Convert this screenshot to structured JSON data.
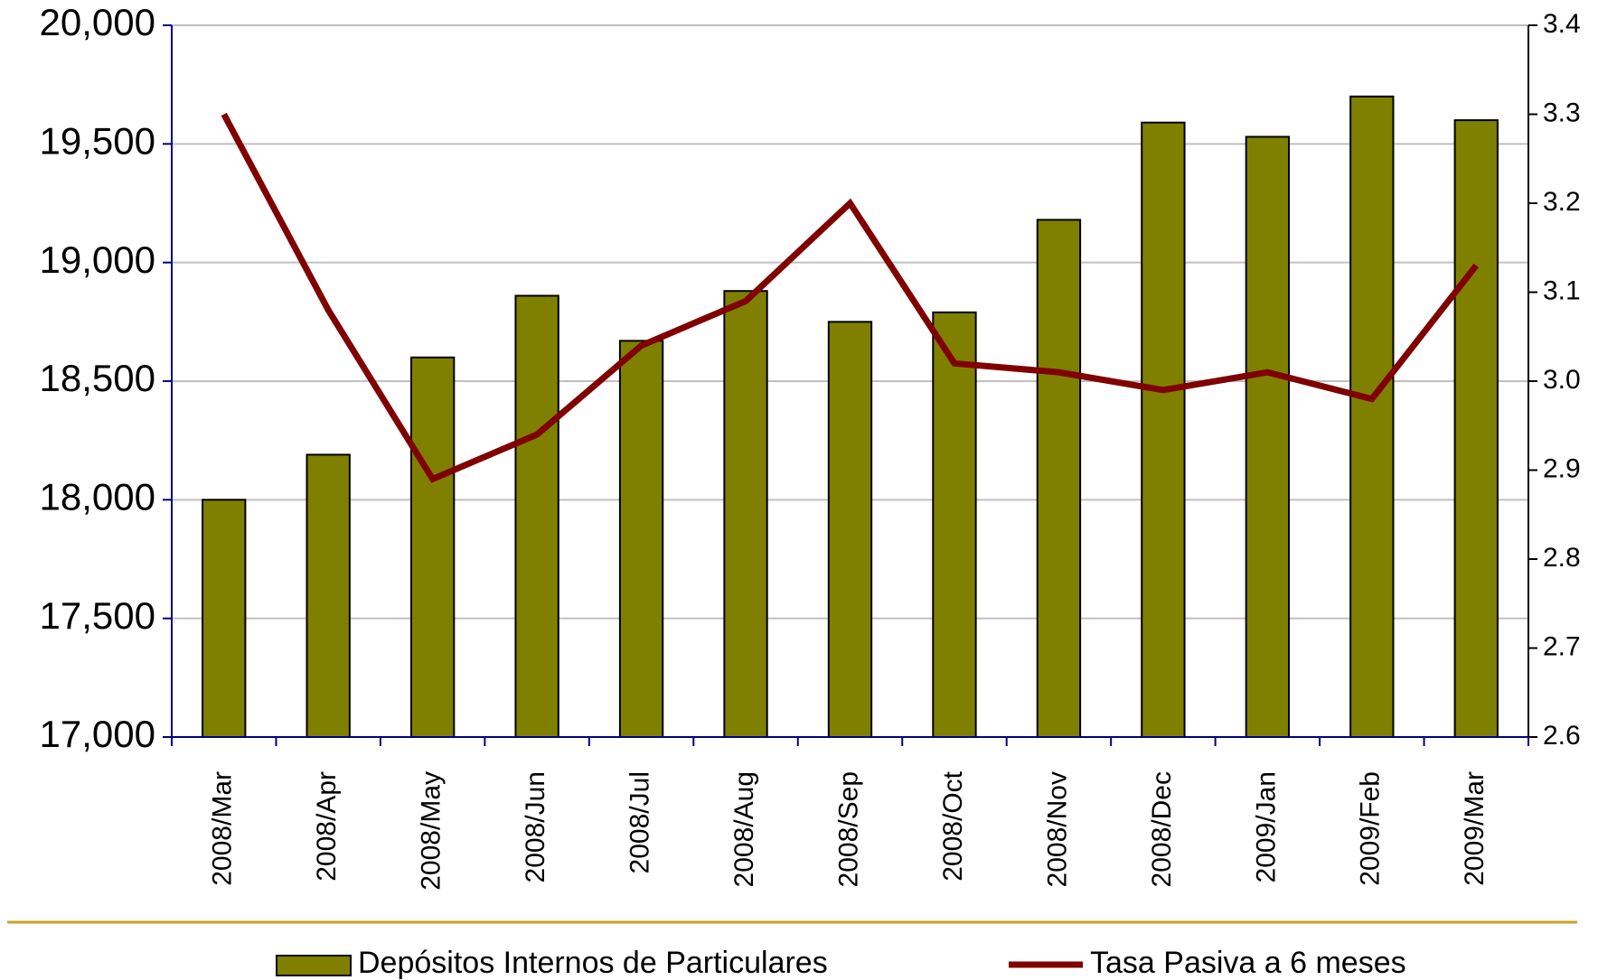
{
  "chart_data": {
    "type": "bar-line",
    "categories": [
      "2008/Mar",
      "2008/Apr",
      "2008/May",
      "2008/Jun",
      "2008/Jul",
      "2008/Aug",
      "2008/Sep",
      "2008/Oct",
      "2008/Nov",
      "2008/Dec",
      "2009/Jan",
      "2009/Feb",
      "2009/Mar"
    ],
    "series": [
      {
        "name": "Depósitos Internos de Particulares",
        "type": "bar",
        "color": "#808000",
        "values": [
          18000,
          18190,
          18600,
          18860,
          18670,
          18880,
          18750,
          18790,
          19180,
          19590,
          19530,
          19700,
          19600
        ]
      },
      {
        "name": "Tasa Pasiva a 6 meses",
        "type": "line",
        "color": "#800000",
        "axis": "y2",
        "values": [
          3.3,
          3.08,
          2.89,
          2.94,
          3.04,
          3.09,
          3.2,
          3.02,
          3.01,
          2.99,
          3.01,
          2.98,
          3.13
        ]
      }
    ],
    "ylim": [
      17000,
      20000
    ],
    "yticks": [
      {
        "value": 17000,
        "label": "17,000"
      },
      {
        "value": 17500,
        "label": "17,500"
      },
      {
        "value": 18000,
        "label": "18,000"
      },
      {
        "value": 18500,
        "label": "18,500"
      },
      {
        "value": 19000,
        "label": "19,000"
      },
      {
        "value": 19500,
        "label": "19,500"
      },
      {
        "value": 20000,
        "label": "20,000"
      }
    ],
    "y2lim": [
      2.6,
      3.4
    ],
    "y2ticks": [
      2.6,
      2.7,
      2.8,
      2.9,
      {
        "value": 3,
        "label": "3.0"
      },
      3.1,
      3.2,
      3.3,
      3.4
    ],
    "grid": true,
    "legend": "bottom"
  }
}
